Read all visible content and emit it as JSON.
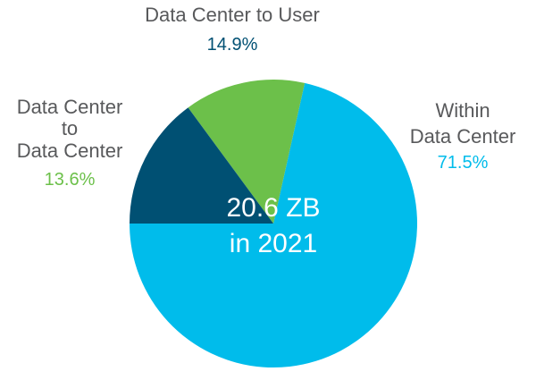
{
  "chart_data": {
    "type": "pie",
    "slices": [
      {
        "name": "Within Data Center",
        "label_lines": [
          "Within",
          "Data Center"
        ],
        "value": 71.5,
        "value_label": "71.5%",
        "color": "#00bceb"
      },
      {
        "name": "Data Center to Data Center",
        "label_lines": [
          "Data Center",
          "to",
          "Data Center"
        ],
        "value": 13.6,
        "value_label": "13.6%",
        "color": "#6cc04a"
      },
      {
        "name": "Data Center to User",
        "label_lines": [
          "Data Center to User"
        ],
        "value": 14.9,
        "value_label": "14.9%",
        "color": "#005073"
      }
    ],
    "center_text": [
      "20.6 ZB",
      "in 2021"
    ],
    "label_text_color": "#58595b",
    "center_text_color": "#ffffff"
  }
}
